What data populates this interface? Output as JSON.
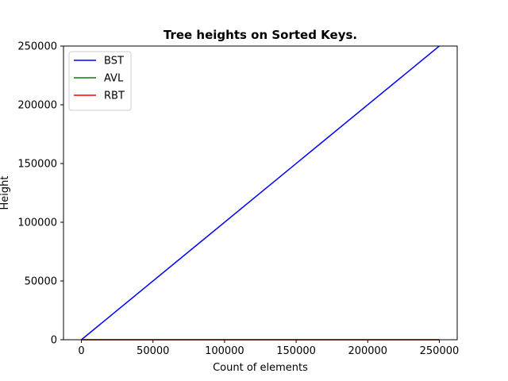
{
  "chart_data": {
    "type": "line",
    "title": "Tree heights on Sorted Keys.",
    "xlabel": "Count of elements",
    "ylabel": "Height",
    "xlim": [
      -12500,
      262500
    ],
    "ylim": [
      0,
      250000
    ],
    "xticks": [
      0,
      50000,
      100000,
      150000,
      200000,
      250000
    ],
    "yticks": [
      0,
      50000,
      100000,
      150000,
      200000,
      250000
    ],
    "legend_position": "top-left",
    "grid": false,
    "series": [
      {
        "name": "BST",
        "color": "#0000ff",
        "x": [
          0,
          250000
        ],
        "y": [
          0,
          250000
        ]
      },
      {
        "name": "AVL",
        "color": "#008000",
        "x": [
          0,
          250000
        ],
        "y": [
          0,
          18
        ]
      },
      {
        "name": "RBT",
        "color": "#ff0000",
        "x": [
          0,
          250000
        ],
        "y": [
          0,
          35
        ]
      }
    ]
  }
}
